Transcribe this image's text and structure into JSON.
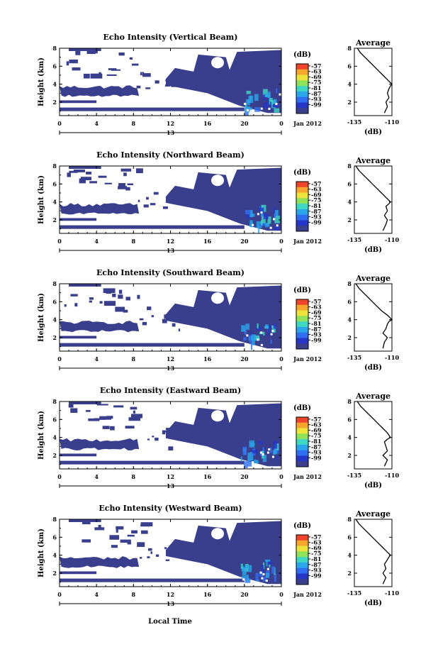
{
  "figure": {
    "xlabel_bottom": "Local Time",
    "date_label": "Jan 2012",
    "date_day": "13",
    "colorbar_unit": "(dB)",
    "colorbar_ticks": [
      "-57",
      "-63",
      "-69",
      "-75",
      "-81",
      "-87",
      "-93",
      "-99"
    ],
    "colorbar_colors": [
      "#f0452d",
      "#f6a62c",
      "#ede33a",
      "#8ee25a",
      "#3fd9c3",
      "#2aa6ea",
      "#2f6ef2",
      "#2636c9",
      "#393f8c"
    ],
    "main_ylabel": "Height (km)",
    "main_xticks": [
      "0",
      "4",
      "8",
      "12",
      "16",
      "20",
      "0"
    ],
    "main_yticks": [
      "2",
      "4",
      "6",
      "8"
    ],
    "avg_title": "Average",
    "avg_xticks": [
      "-135",
      "-110"
    ],
    "avg_yticks": [
      "2",
      "4",
      "6",
      "8"
    ],
    "avg_xlabel": "(dB)",
    "avg_xticks_panel5": [
      "-135",
      "-110"
    ],
    "fill_color": "#393f8c"
  },
  "chart_data": [
    {
      "type": "heatmap",
      "title": "Echo Intensity (Vertical Beam)",
      "xlabel": "",
      "ylabel": "Height (km)",
      "x_range": [
        0,
        24
      ],
      "y_range": [
        0.5,
        8
      ],
      "color_range_db": [
        -99,
        -57
      ],
      "avg_profile": {
        "title": "Average",
        "xlabel": "(dB)",
        "xlim": [
          -135,
          -110
        ],
        "ylim": [
          0.5,
          8
        ],
        "heights": [
          0.8,
          1.5,
          2.0,
          2.5,
          3.0,
          3.5,
          3.8,
          4.0,
          4.5,
          5.0,
          5.5,
          6.0,
          6.5,
          7.0,
          7.5,
          8.0
        ],
        "values": [
          -115,
          -113,
          -114,
          -112,
          -113,
          -112,
          -111,
          -110,
          -113,
          -116,
          -119,
          -122,
          -125,
          -128,
          -131,
          -133
        ]
      }
    },
    {
      "type": "heatmap",
      "title": "Echo Intensity (Northward Beam)",
      "xlabel": "",
      "ylabel": "Height (km)",
      "x_range": [
        0,
        24
      ],
      "y_range": [
        0.5,
        8
      ],
      "color_range_db": [
        -99,
        -57
      ],
      "avg_profile": {
        "title": "Average",
        "xlabel": "(dB)",
        "xlim": [
          -135,
          -110
        ],
        "ylim": [
          0.5,
          8
        ],
        "heights": [
          0.8,
          1.5,
          2.0,
          2.5,
          3.0,
          3.5,
          3.8,
          4.0,
          4.5,
          5.0,
          5.5,
          6.0,
          6.5,
          7.0,
          7.5,
          8.0
        ],
        "values": [
          -116,
          -114,
          -113,
          -115,
          -113,
          -114,
          -112,
          -111,
          -114,
          -117,
          -120,
          -123,
          -126,
          -129,
          -132,
          -134
        ]
      }
    },
    {
      "type": "heatmap",
      "title": "Echo Intensity (Southward Beam)",
      "xlabel": "",
      "ylabel": "Height (km)",
      "x_range": [
        0,
        24
      ],
      "y_range": [
        0.5,
        8
      ],
      "color_range_db": [
        -99,
        -57
      ],
      "avg_profile": {
        "title": "Average",
        "xlabel": "(dB)",
        "xlim": [
          -135,
          -110
        ],
        "ylim": [
          0.5,
          8
        ],
        "heights": [
          0.8,
          1.5,
          2.0,
          2.5,
          3.0,
          3.5,
          3.8,
          4.0,
          4.5,
          5.0,
          5.5,
          6.0,
          6.5,
          7.0,
          7.5,
          8.0
        ],
        "values": [
          -116,
          -115,
          -113,
          -116,
          -114,
          -113,
          -112,
          -110,
          -113,
          -117,
          -120,
          -123,
          -126,
          -129,
          -132,
          -134
        ]
      }
    },
    {
      "type": "heatmap",
      "title": "Echo Intensity (Eastward Beam)",
      "xlabel": "",
      "ylabel": "Height (km)",
      "x_range": [
        0,
        24
      ],
      "y_range": [
        0.5,
        8
      ],
      "color_range_db": [
        -99,
        -57
      ],
      "avg_profile": {
        "title": "Average",
        "xlabel": "(dB)",
        "xlim": [
          -135,
          -110
        ],
        "ylim": [
          0.5,
          8
        ],
        "heights": [
          0.8,
          1.5,
          2.0,
          2.5,
          3.0,
          3.5,
          3.8,
          4.0,
          4.5,
          5.0,
          5.5,
          6.0,
          6.5,
          7.0,
          7.5,
          8.0
        ],
        "values": [
          -115,
          -113,
          -116,
          -113,
          -114,
          -115,
          -113,
          -111,
          -113,
          -116,
          -119,
          -122,
          -125,
          -128,
          -131,
          -133
        ]
      }
    },
    {
      "type": "heatmap",
      "title": "Echo Intensity (Westward Beam)",
      "xlabel": "Local Time",
      "ylabel": "Height (km)",
      "x_range": [
        0,
        24
      ],
      "y_range": [
        0.5,
        8
      ],
      "color_range_db": [
        -99,
        -57
      ],
      "avg_profile": {
        "title": "Average",
        "xlabel": "(dB)",
        "xlim": [
          -135,
          -110
        ],
        "ylim": [
          0.5,
          8
        ],
        "heights": [
          0.8,
          1.5,
          2.0,
          2.5,
          3.0,
          3.5,
          3.8,
          4.0,
          4.5,
          5.0,
          5.5,
          6.0,
          6.5,
          7.0,
          7.5,
          8.0
        ],
        "values": [
          -116,
          -114,
          -116,
          -114,
          -115,
          -113,
          -112,
          -111,
          -114,
          -117,
          -120,
          -123,
          -126,
          -129,
          -132,
          -134
        ]
      }
    }
  ]
}
